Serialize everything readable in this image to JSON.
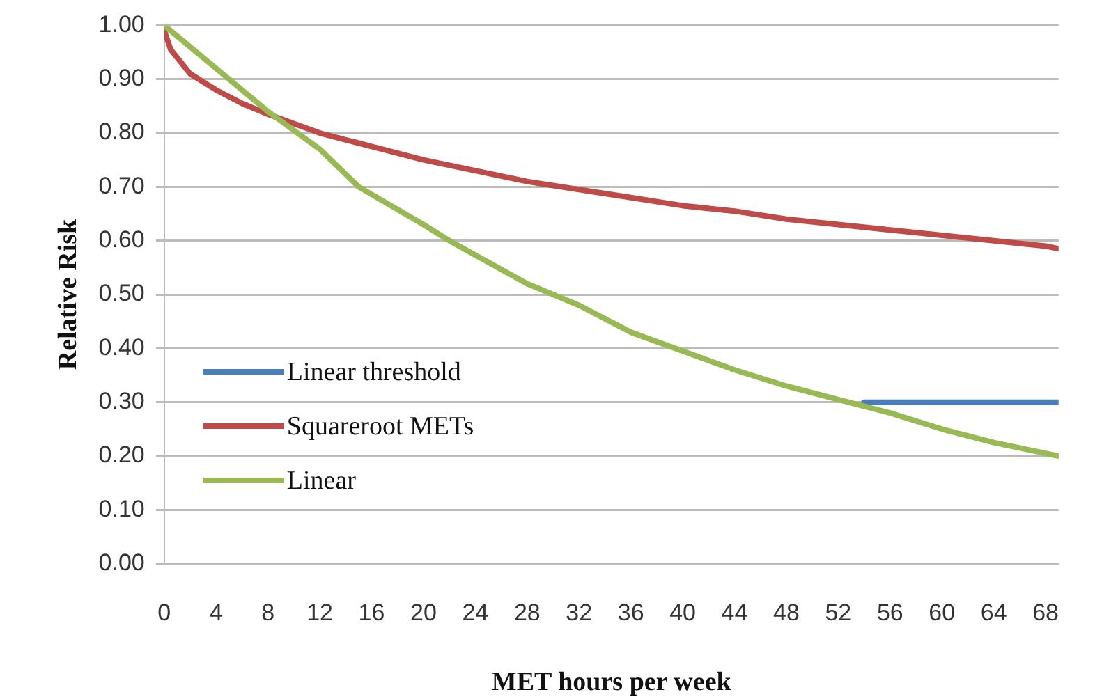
{
  "chart_data": {
    "type": "line",
    "xlabel": "MET hours per week",
    "ylabel": "Relative Risk",
    "xlim": [
      0,
      69
    ],
    "xticks": [
      0,
      4,
      8,
      12,
      16,
      20,
      24,
      28,
      32,
      36,
      40,
      44,
      48,
      52,
      56,
      60,
      64,
      68
    ],
    "ylim": [
      0,
      1
    ],
    "yticks": [
      {
        "value": 0,
        "label": "0.00"
      },
      {
        "value": 0.1,
        "label": "0.10"
      },
      {
        "value": 0.2,
        "label": "0.20"
      },
      {
        "value": 0.3,
        "label": "0.30"
      },
      {
        "value": 0.4,
        "label": "0.40"
      },
      {
        "value": 0.5,
        "label": "0.50"
      },
      {
        "value": 0.6,
        "label": "0.60"
      },
      {
        "value": 0.7,
        "label": "0.70"
      },
      {
        "value": 0.8,
        "label": "0.80"
      },
      {
        "value": 0.9,
        "label": "0.90"
      },
      {
        "value": 1,
        "label": "1.00"
      }
    ],
    "grid": "y",
    "legend": "bottom left",
    "marker": "none",
    "line_style": "solid",
    "series": [
      {
        "name": "Linear threshold",
        "color": "#4a7ebb",
        "x": [
          54,
          69
        ],
        "values": [
          0.3,
          0.3
        ]
      },
      {
        "name": "Squareroot METs",
        "color": "#be4b48",
        "x": [
          0,
          0.5,
          1,
          2,
          4,
          6,
          8,
          12,
          16,
          20,
          24,
          28,
          32,
          36,
          40,
          44,
          48,
          52,
          56,
          60,
          64,
          68,
          69
        ],
        "values": [
          0.99,
          0.955,
          0.94,
          0.91,
          0.88,
          0.855,
          0.835,
          0.8,
          0.775,
          0.75,
          0.73,
          0.71,
          0.695,
          0.68,
          0.665,
          0.655,
          0.64,
          0.63,
          0.62,
          0.61,
          0.6,
          0.59,
          0.585
        ]
      },
      {
        "name": "Linear",
        "color": "#98b954",
        "x": [
          0,
          4,
          8,
          12,
          15,
          20,
          22,
          28,
          32,
          36,
          40,
          44,
          48,
          52,
          56,
          60,
          64,
          68,
          69
        ],
        "values": [
          1.0,
          0.92,
          0.84,
          0.77,
          0.7,
          0.63,
          0.6,
          0.52,
          0.48,
          0.43,
          0.395,
          0.36,
          0.33,
          0.305,
          0.28,
          0.25,
          0.225,
          0.205,
          0.2
        ]
      }
    ]
  }
}
